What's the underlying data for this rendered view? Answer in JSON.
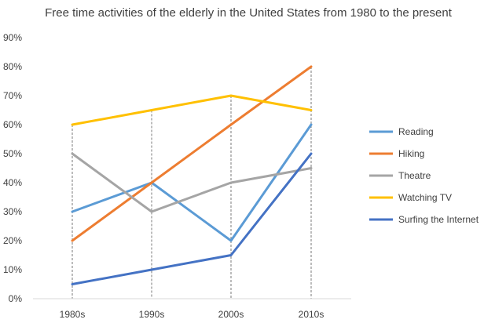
{
  "chart_data": {
    "type": "line",
    "title": "Free time activities of the elderly in the United States from 1980 to the present",
    "xlabel": "",
    "ylabel": "",
    "categories": [
      "1980s",
      "1990s",
      "2000s",
      "2010s"
    ],
    "ylim": [
      0,
      90
    ],
    "yticks": [
      "0%",
      "10%",
      "20%",
      "30%",
      "40%",
      "50%",
      "60%",
      "70%",
      "80%",
      "90%"
    ],
    "grid": "vertical dashed drop lines at each category",
    "legend": "right",
    "series": [
      {
        "name": "Reading",
        "color": "#5B9BD5",
        "values": [
          30,
          40,
          20,
          60
        ]
      },
      {
        "name": "Hiking",
        "color": "#ED7D31",
        "values": [
          20,
          40,
          60,
          80
        ]
      },
      {
        "name": "Theatre",
        "color": "#A5A5A5",
        "values": [
          50,
          30,
          40,
          45
        ]
      },
      {
        "name": "Watching TV",
        "color": "#FFC000",
        "values": [
          60,
          65,
          70,
          65
        ]
      },
      {
        "name": "Surfing the Internet",
        "color": "#4472C4",
        "values": [
          5,
          10,
          15,
          50
        ]
      }
    ]
  }
}
